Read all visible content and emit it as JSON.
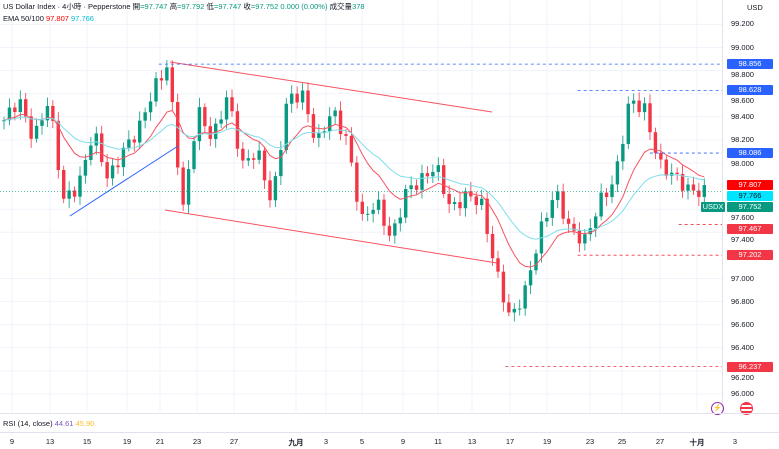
{
  "header": {
    "symbol": "US Dollar Index · 4小時 · Pepperstone",
    "open_label": "開",
    "open": "=97.747",
    "high_label": "高",
    "high": "=97.792",
    "low_label": "低",
    "low": "=97.747",
    "close_label": "收",
    "close": "=97.752",
    "change": "0.000 (0.00%)",
    "volume_label": "成交量",
    "volume": "378"
  },
  "ema": {
    "label": "EMA 50/100",
    "ema50": "97.807",
    "ema100": "97.766"
  },
  "rsi": {
    "label": "RSI (14, close)",
    "v1": "44.61",
    "v2": "45.90"
  },
  "axis": {
    "currency": "USD",
    "ticks": [
      "99.200",
      "99.000",
      "98.800",
      "98.600",
      "98.400",
      "98.200",
      "98.000",
      "97.600",
      "97.400",
      "97.000",
      "96.800",
      "96.600",
      "96.400",
      "96.200",
      "96.000"
    ],
    "tags": [
      {
        "text": "98.856",
        "price": 98.856,
        "color": "#2962ff"
      },
      {
        "text": "98.628",
        "price": 98.628,
        "color": "#2962ff"
      },
      {
        "text": "98.086",
        "price": 98.086,
        "color": "#2962ff"
      },
      {
        "text": "97.807",
        "price": 97.807,
        "color": "#ff0000"
      },
      {
        "text": "97.766",
        "price": 97.766,
        "color": "#00e5ff"
      },
      {
        "text": "97.752",
        "price": 97.752,
        "color": "#089981"
      },
      {
        "text": "97.467",
        "price": 97.467,
        "color": "#f23645"
      },
      {
        "text": "97.202",
        "price": 97.202,
        "color": "#f23645"
      },
      {
        "text": "96.237",
        "price": 96.237,
        "color": "#f23645"
      }
    ],
    "symbol_tag": "USDX"
  },
  "time_labels": [
    "9",
    "13",
    "15",
    "19",
    "21",
    "23",
    "27",
    "九月",
    "3",
    "5",
    "9",
    "11",
    "13",
    "17",
    "19",
    "23",
    "25",
    "27",
    "十月",
    "3"
  ],
  "chart_data": {
    "type": "candlestick",
    "ylim": [
      95.9,
      99.35
    ],
    "close_path": [
      98.37,
      98.55,
      98.2,
      98.55,
      97.68,
      97.8,
      98.28,
      97.85,
      98.11,
      98.28,
      98.63,
      98.85,
      97.59,
      98.46,
      98.2,
      98.59,
      97.98,
      98.11,
      97.63,
      98.55,
      98.6,
      98.16,
      98.46,
      98.2,
      97.5,
      97.67,
      97.33,
      97.76,
      97.85,
      97.98,
      97.59,
      97.72,
      97.67,
      97.07,
      96.64,
      96.9,
      97.41,
      97.76,
      97.41,
      97.33,
      97.67,
      97.85,
      98.55,
      98.46,
      97.98,
      97.89,
      97.76,
      97.75
    ],
    "levels": [
      {
        "price": 98.856,
        "from": 0.22,
        "color": "#2962ff"
      },
      {
        "price": 98.628,
        "from": 0.8,
        "color": "#2962ff"
      },
      {
        "price": 98.086,
        "from": 0.9,
        "color": "#2962ff"
      },
      {
        "price": 97.467,
        "from": 0.94,
        "color": "#f23645"
      },
      {
        "price": 97.202,
        "from": 0.8,
        "color": "#f23645"
      },
      {
        "price": 96.237,
        "from": 0.7,
        "color": "#f23645"
      }
    ],
    "up_color": "#089981",
    "down_color": "#f23645",
    "ema50_color": "#f7525f",
    "ema100_color": "#80deea"
  }
}
